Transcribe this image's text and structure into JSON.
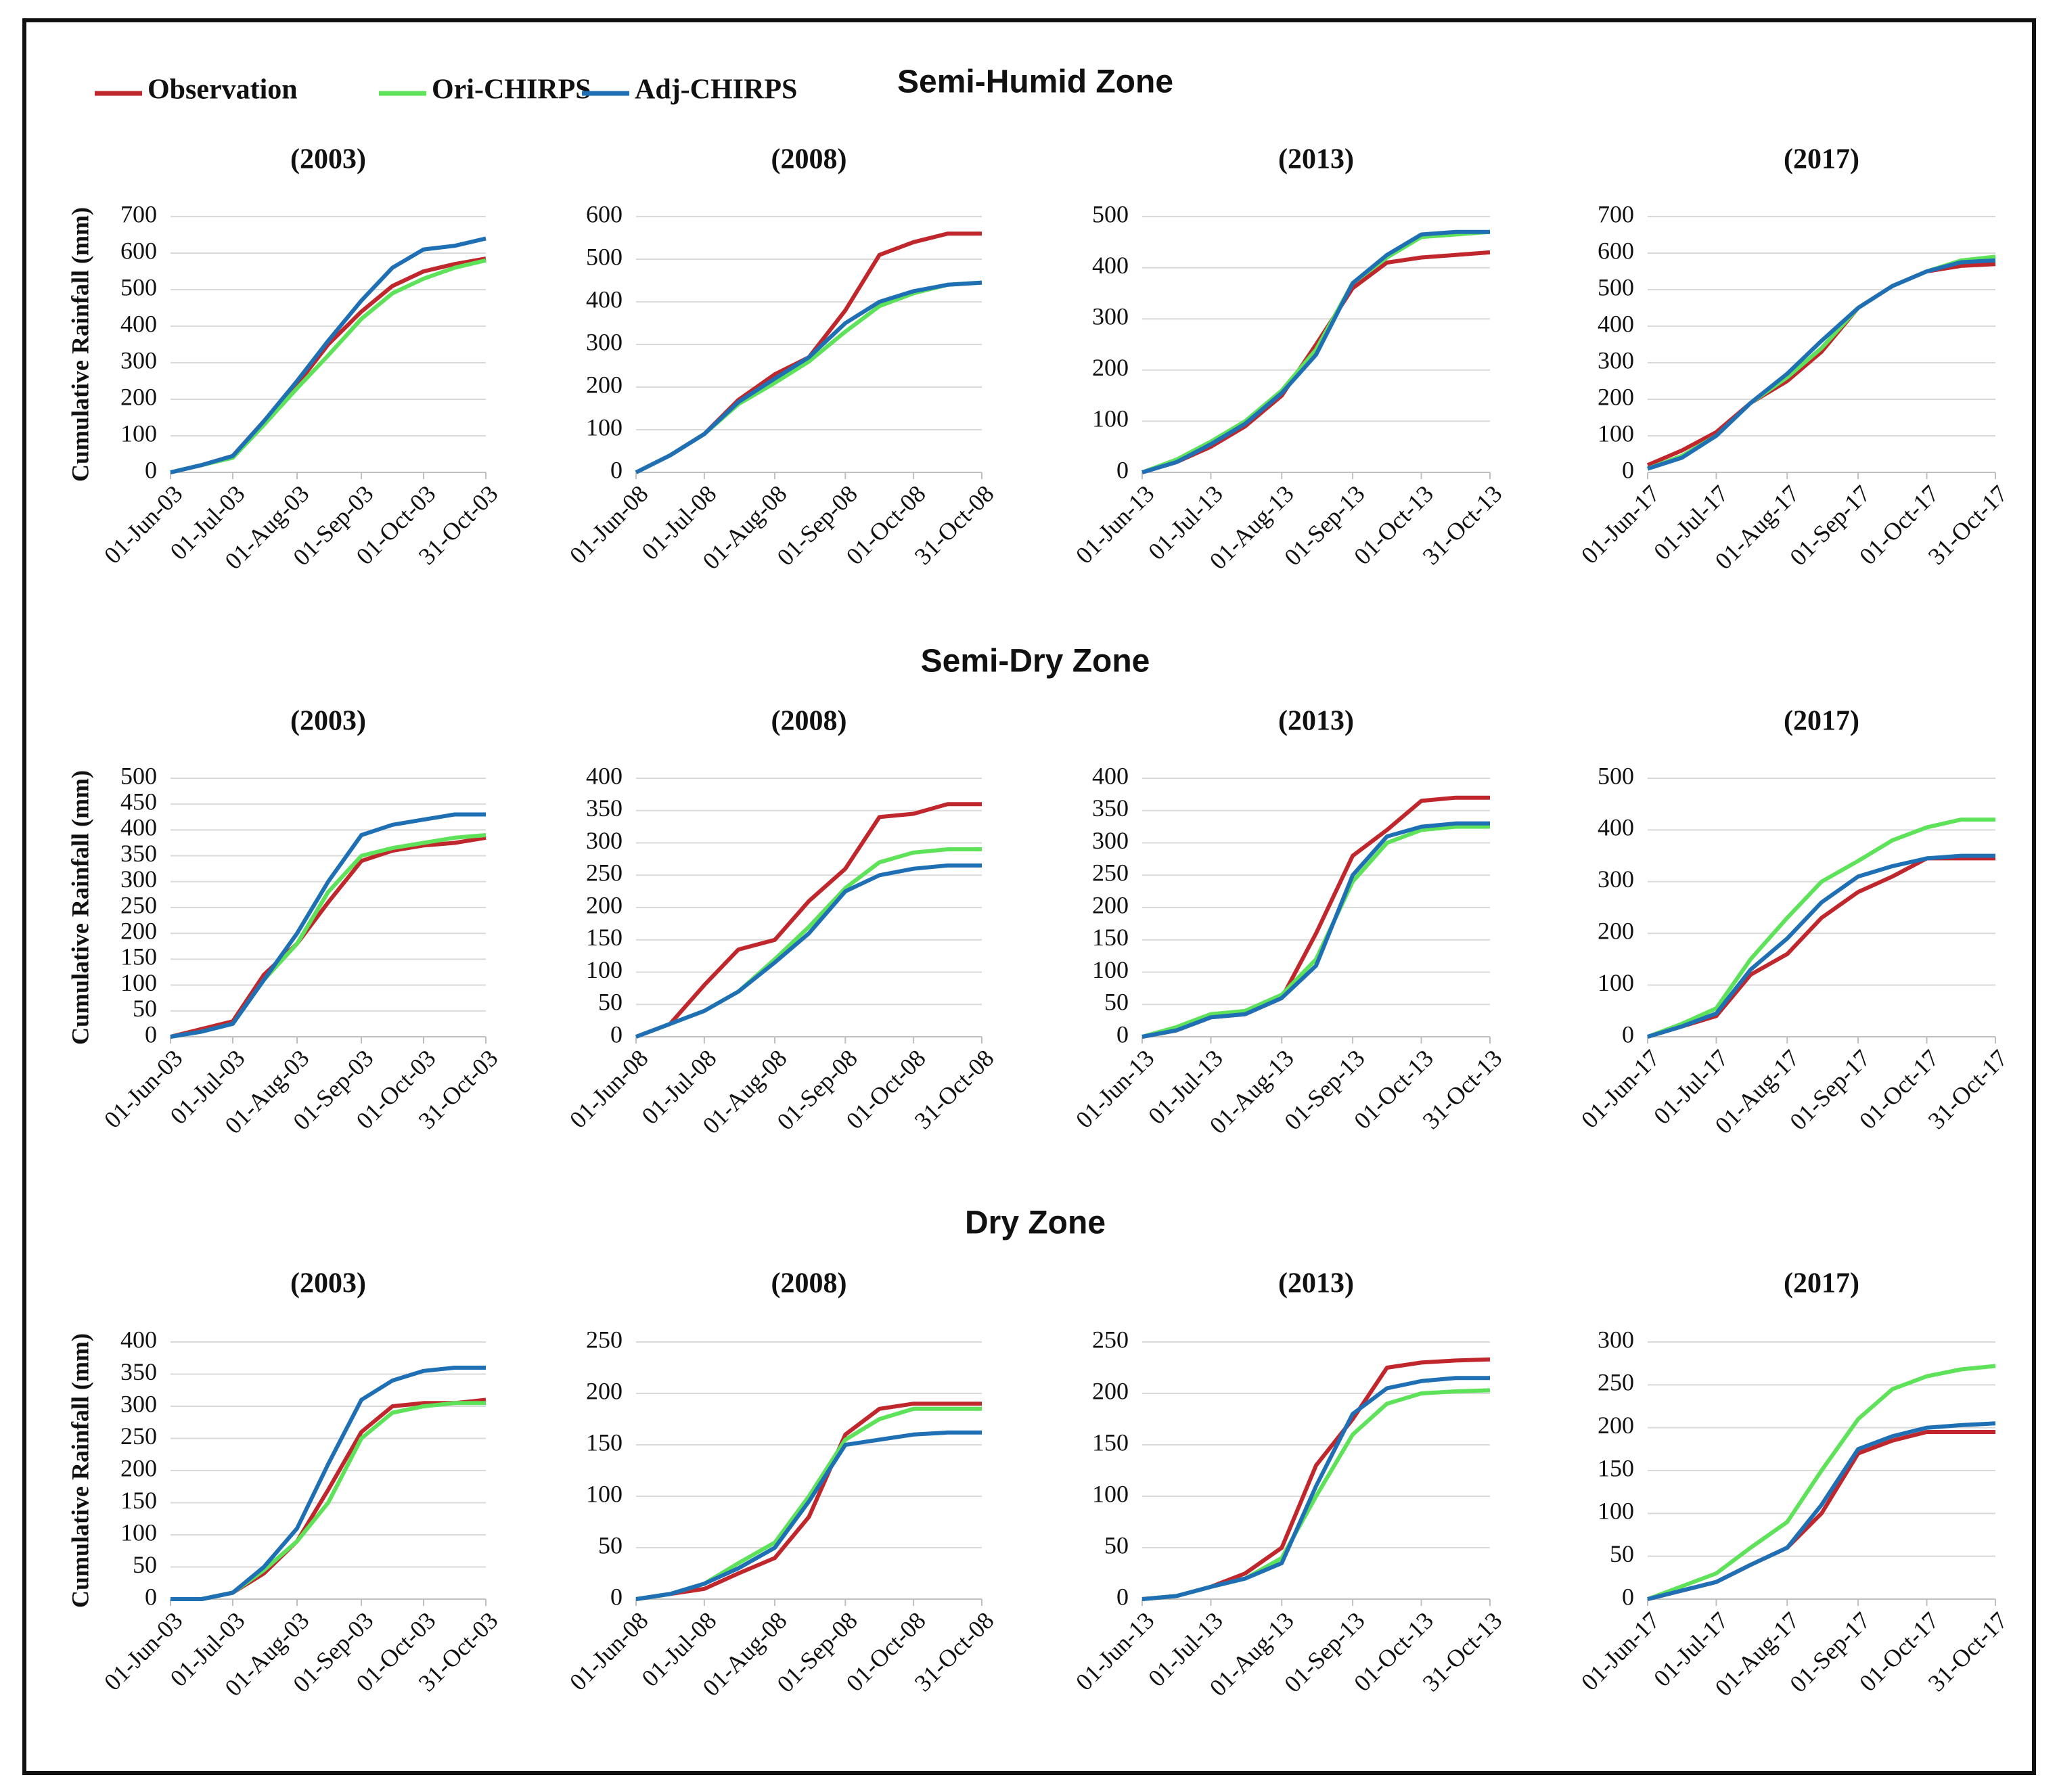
{
  "zones": [
    "Semi-Humid Zone",
    "Semi-Dry Zone",
    "Dry Zone"
  ],
  "legend": [
    {
      "name": "Observation",
      "color": "#c0272d"
    },
    {
      "name": "Ori-CHIRPS",
      "color": "#5ee25a"
    },
    {
      "name": "Adj-CHIRPS",
      "color": "#1f6fb4"
    }
  ],
  "chart_data": [
    {
      "type": "line",
      "title": "(2003)",
      "ylabel": "Cumulative Rainfall (mm)",
      "x": [
        "01-Jun-03",
        "16-Jun-03",
        "01-Jul-03",
        "16-Jul-03",
        "01-Aug-03",
        "16-Aug-03",
        "01-Sep-03",
        "16-Sep-03",
        "01-Oct-03",
        "16-Oct-03",
        "31-Oct-03"
      ],
      "xticks": [
        "01-Jun-03",
        "01-Jul-03",
        "01-Aug-03",
        "01-Sep-03",
        "01-Oct-03",
        "31-Oct-03"
      ],
      "ylim": [
        0,
        700
      ],
      "yticks": [
        0,
        100,
        200,
        300,
        400,
        500,
        600,
        700
      ],
      "grid": true,
      "series": [
        {
          "color": "#c0272d",
          "values": [
            0,
            20,
            45,
            140,
            240,
            350,
            440,
            510,
            550,
            570,
            585
          ]
        },
        {
          "color": "#5ee25a",
          "values": [
            0,
            20,
            40,
            130,
            230,
            320,
            420,
            490,
            530,
            560,
            580
          ]
        },
        {
          "color": "#1f6fb4",
          "values": [
            0,
            20,
            45,
            140,
            250,
            360,
            470,
            560,
            610,
            620,
            640
          ]
        }
      ]
    },
    {
      "type": "line",
      "title": "(2008)",
      "x": [
        "01-Jun-08",
        "16-Jun-08",
        "01-Jul-08",
        "16-Jul-08",
        "01-Aug-08",
        "16-Aug-08",
        "01-Sep-08",
        "16-Sep-08",
        "01-Oct-08",
        "16-Oct-08",
        "31-Oct-08"
      ],
      "xticks": [
        "01-Jun-08",
        "01-Jul-08",
        "01-Aug-08",
        "01-Sep-08",
        "01-Oct-08",
        "31-Oct-08"
      ],
      "ylim": [
        0,
        600
      ],
      "yticks": [
        0,
        100,
        200,
        300,
        400,
        500,
        600
      ],
      "grid": true,
      "series": [
        {
          "color": "#c0272d",
          "values": [
            0,
            40,
            90,
            170,
            230,
            270,
            380,
            510,
            540,
            560,
            560
          ]
        },
        {
          "color": "#5ee25a",
          "values": [
            0,
            40,
            90,
            160,
            210,
            260,
            330,
            390,
            420,
            440,
            445
          ]
        },
        {
          "color": "#1f6fb4",
          "values": [
            0,
            40,
            90,
            165,
            220,
            270,
            350,
            400,
            425,
            440,
            445
          ]
        }
      ]
    },
    {
      "type": "line",
      "title": "(2013)",
      "x": [
        "01-Jun-13",
        "16-Jun-13",
        "01-Jul-13",
        "16-Jul-13",
        "01-Aug-13",
        "16-Aug-13",
        "01-Sep-13",
        "16-Sep-13",
        "01-Oct-13",
        "16-Oct-13",
        "31-Oct-13"
      ],
      "xticks": [
        "01-Jun-13",
        "01-Jul-13",
        "01-Aug-13",
        "01-Sep-13",
        "01-Oct-13",
        "31-Oct-13"
      ],
      "ylim": [
        0,
        500
      ],
      "yticks": [
        0,
        100,
        200,
        300,
        400,
        500
      ],
      "grid": true,
      "series": [
        {
          "color": "#c0272d",
          "values": [
            0,
            20,
            50,
            90,
            150,
            250,
            360,
            410,
            420,
            425,
            430
          ]
        },
        {
          "color": "#5ee25a",
          "values": [
            0,
            25,
            60,
            100,
            160,
            240,
            370,
            420,
            460,
            465,
            470
          ]
        },
        {
          "color": "#1f6fb4",
          "values": [
            0,
            20,
            55,
            95,
            155,
            230,
            370,
            425,
            465,
            470,
            470
          ]
        }
      ]
    },
    {
      "type": "line",
      "title": "(2017)",
      "x": [
        "01-Jun-17",
        "16-Jun-17",
        "01-Jul-17",
        "16-Jul-17",
        "01-Aug-17",
        "16-Aug-17",
        "01-Sep-17",
        "16-Sep-17",
        "01-Oct-17",
        "16-Oct-17",
        "31-Oct-17"
      ],
      "xticks": [
        "01-Jun-17",
        "01-Jul-17",
        "01-Aug-17",
        "01-Sep-17",
        "01-Oct-17",
        "31-Oct-17"
      ],
      "ylim": [
        0,
        700
      ],
      "yticks": [
        0,
        100,
        200,
        300,
        400,
        500,
        600,
        700
      ],
      "grid": true,
      "series": [
        {
          "color": "#c0272d",
          "values": [
            20,
            60,
            110,
            190,
            250,
            330,
            450,
            510,
            550,
            565,
            570
          ]
        },
        {
          "color": "#5ee25a",
          "values": [
            10,
            45,
            100,
            190,
            260,
            340,
            450,
            510,
            550,
            580,
            590
          ]
        },
        {
          "color": "#1f6fb4",
          "values": [
            10,
            40,
            100,
            190,
            270,
            360,
            450,
            510,
            550,
            575,
            580
          ]
        }
      ]
    },
    {
      "type": "line",
      "title": "(2003)",
      "ylabel": "Cumulative Rainfall (mm)",
      "x": [
        "01-Jun-03",
        "16-Jun-03",
        "01-Jul-03",
        "16-Jul-03",
        "01-Aug-03",
        "16-Aug-03",
        "01-Sep-03",
        "16-Sep-03",
        "01-Oct-03",
        "16-Oct-03",
        "31-Oct-03"
      ],
      "xticks": [
        "01-Jun-03",
        "01-Jul-03",
        "01-Aug-03",
        "01-Sep-03",
        "01-Oct-03",
        "31-Oct-03"
      ],
      "ylim": [
        0,
        500
      ],
      "yticks": [
        0,
        50,
        100,
        150,
        200,
        250,
        300,
        350,
        400,
        450,
        500
      ],
      "grid": true,
      "series": [
        {
          "color": "#c0272d",
          "values": [
            0,
            15,
            30,
            120,
            180,
            260,
            340,
            360,
            370,
            375,
            385
          ]
        },
        {
          "color": "#5ee25a",
          "values": [
            0,
            10,
            25,
            110,
            180,
            280,
            350,
            365,
            375,
            385,
            390
          ]
        },
        {
          "color": "#1f6fb4",
          "values": [
            0,
            10,
            25,
            110,
            200,
            300,
            390,
            410,
            420,
            430,
            430
          ]
        }
      ]
    },
    {
      "type": "line",
      "title": "(2008)",
      "x": [
        "01-Jun-08",
        "16-Jun-08",
        "01-Jul-08",
        "16-Jul-08",
        "01-Aug-08",
        "16-Aug-08",
        "01-Sep-08",
        "16-Sep-08",
        "01-Oct-08",
        "16-Oct-08",
        "31-Oct-08"
      ],
      "xticks": [
        "01-Jun-08",
        "01-Jul-08",
        "01-Aug-08",
        "01-Sep-08",
        "01-Oct-08",
        "31-Oct-08"
      ],
      "ylim": [
        0,
        400
      ],
      "yticks": [
        0,
        50,
        100,
        150,
        200,
        250,
        300,
        350,
        400
      ],
      "grid": true,
      "series": [
        {
          "color": "#c0272d",
          "values": [
            0,
            20,
            80,
            135,
            150,
            210,
            260,
            340,
            345,
            360,
            360
          ]
        },
        {
          "color": "#5ee25a",
          "values": [
            0,
            20,
            40,
            70,
            120,
            170,
            230,
            270,
            285,
            290,
            290
          ]
        },
        {
          "color": "#1f6fb4",
          "values": [
            0,
            20,
            40,
            70,
            115,
            160,
            225,
            250,
            260,
            265,
            265
          ]
        }
      ]
    },
    {
      "type": "line",
      "title": "(2013)",
      "x": [
        "01-Jun-13",
        "16-Jun-13",
        "01-Jul-13",
        "16-Jul-13",
        "01-Aug-13",
        "16-Aug-13",
        "01-Sep-13",
        "16-Sep-13",
        "01-Oct-13",
        "16-Oct-13",
        "31-Oct-13"
      ],
      "xticks": [
        "01-Jun-13",
        "01-Jul-13",
        "01-Aug-13",
        "01-Sep-13",
        "01-Oct-13",
        "31-Oct-13"
      ],
      "ylim": [
        0,
        400
      ],
      "yticks": [
        0,
        50,
        100,
        150,
        200,
        250,
        300,
        350,
        400
      ],
      "grid": true,
      "series": [
        {
          "color": "#c0272d",
          "values": [
            0,
            10,
            30,
            35,
            60,
            160,
            280,
            320,
            365,
            370,
            370
          ]
        },
        {
          "color": "#5ee25a",
          "values": [
            0,
            15,
            35,
            40,
            65,
            120,
            240,
            300,
            320,
            325,
            325
          ]
        },
        {
          "color": "#1f6fb4",
          "values": [
            0,
            10,
            30,
            35,
            60,
            110,
            250,
            310,
            325,
            330,
            330
          ]
        }
      ]
    },
    {
      "type": "line",
      "title": "(2017)",
      "x": [
        "01-Jun-17",
        "16-Jun-17",
        "01-Jul-17",
        "16-Jul-17",
        "01-Aug-17",
        "16-Aug-17",
        "01-Sep-17",
        "16-Sep-17",
        "01-Oct-17",
        "16-Oct-17",
        "31-Oct-17"
      ],
      "xticks": [
        "01-Jun-17",
        "01-Jul-17",
        "01-Aug-17",
        "01-Sep-17",
        "01-Oct-17",
        "31-Oct-17"
      ],
      "ylim": [
        0,
        500
      ],
      "yticks": [
        0,
        100,
        200,
        300,
        400,
        500
      ],
      "grid": true,
      "series": [
        {
          "color": "#c0272d",
          "values": [
            0,
            20,
            40,
            120,
            160,
            230,
            280,
            310,
            345,
            345,
            345
          ]
        },
        {
          "color": "#5ee25a",
          "values": [
            0,
            25,
            55,
            150,
            230,
            300,
            340,
            380,
            405,
            420,
            420
          ]
        },
        {
          "color": "#1f6fb4",
          "values": [
            0,
            20,
            45,
            130,
            190,
            260,
            310,
            330,
            345,
            350,
            350
          ]
        }
      ]
    },
    {
      "type": "line",
      "title": "(2003)",
      "ylabel": "Cumulative Rainfall (mm)",
      "x": [
        "01-Jun-03",
        "16-Jun-03",
        "01-Jul-03",
        "16-Jul-03",
        "01-Aug-03",
        "16-Aug-03",
        "01-Sep-03",
        "16-Sep-03",
        "01-Oct-03",
        "16-Oct-03",
        "31-Oct-03"
      ],
      "xticks": [
        "01-Jun-03",
        "01-Jul-03",
        "01-Aug-03",
        "01-Sep-03",
        "01-Oct-03",
        "31-Oct-03"
      ],
      "ylim": [
        0,
        400
      ],
      "yticks": [
        0,
        50,
        100,
        150,
        200,
        250,
        300,
        350,
        400
      ],
      "grid": true,
      "series": [
        {
          "color": "#c0272d",
          "values": [
            0,
            0,
            10,
            40,
            90,
            170,
            260,
            300,
            305,
            305,
            310
          ]
        },
        {
          "color": "#5ee25a",
          "values": [
            0,
            0,
            10,
            45,
            90,
            150,
            250,
            290,
            300,
            305,
            305
          ]
        },
        {
          "color": "#1f6fb4",
          "values": [
            0,
            0,
            10,
            50,
            110,
            210,
            310,
            340,
            355,
            360,
            360
          ]
        }
      ]
    },
    {
      "type": "line",
      "title": "(2008)",
      "x": [
        "01-Jun-08",
        "16-Jun-08",
        "01-Jul-08",
        "16-Jul-08",
        "01-Aug-08",
        "16-Aug-08",
        "01-Sep-08",
        "16-Sep-08",
        "01-Oct-08",
        "16-Oct-08",
        "31-Oct-08"
      ],
      "xticks": [
        "01-Jun-08",
        "01-Jul-08",
        "01-Aug-08",
        "01-Sep-08",
        "01-Oct-08",
        "31-Oct-08"
      ],
      "ylim": [
        0,
        250
      ],
      "yticks": [
        0,
        50,
        100,
        150,
        200,
        250
      ],
      "grid": true,
      "series": [
        {
          "color": "#c0272d",
          "values": [
            0,
            5,
            10,
            25,
            40,
            80,
            160,
            185,
            190,
            190,
            190
          ]
        },
        {
          "color": "#5ee25a",
          "values": [
            0,
            5,
            15,
            35,
            55,
            100,
            155,
            175,
            185,
            185,
            185
          ]
        },
        {
          "color": "#1f6fb4",
          "values": [
            0,
            5,
            15,
            30,
            50,
            95,
            150,
            155,
            160,
            162,
            162
          ]
        }
      ]
    },
    {
      "type": "line",
      "title": "(2013)",
      "x": [
        "01-Jun-13",
        "16-Jun-13",
        "01-Jul-13",
        "16-Jul-13",
        "01-Aug-13",
        "16-Aug-13",
        "01-Sep-13",
        "16-Sep-13",
        "01-Oct-13",
        "16-Oct-13",
        "31-Oct-13"
      ],
      "xticks": [
        "01-Jun-13",
        "01-Jul-13",
        "01-Aug-13",
        "01-Sep-13",
        "01-Oct-13",
        "31-Oct-13"
      ],
      "ylim": [
        0,
        250
      ],
      "yticks": [
        0,
        50,
        100,
        150,
        200,
        250
      ],
      "grid": true,
      "series": [
        {
          "color": "#c0272d",
          "values": [
            0,
            3,
            12,
            25,
            50,
            130,
            175,
            225,
            230,
            232,
            233
          ]
        },
        {
          "color": "#5ee25a",
          "values": [
            0,
            3,
            12,
            20,
            40,
            100,
            160,
            190,
            200,
            202,
            203
          ]
        },
        {
          "color": "#1f6fb4",
          "values": [
            0,
            3,
            12,
            20,
            35,
            110,
            180,
            205,
            212,
            215,
            215
          ]
        }
      ]
    },
    {
      "type": "line",
      "title": "(2017)",
      "x": [
        "01-Jun-17",
        "16-Jun-17",
        "01-Jul-17",
        "16-Jul-17",
        "01-Aug-17",
        "16-Aug-17",
        "01-Sep-17",
        "16-Sep-17",
        "01-Oct-17",
        "16-Oct-17",
        "31-Oct-17"
      ],
      "xticks": [
        "01-Jun-17",
        "01-Jul-17",
        "01-Aug-17",
        "01-Sep-17",
        "01-Oct-17",
        "31-Oct-17"
      ],
      "ylim": [
        0,
        300
      ],
      "yticks": [
        0,
        50,
        100,
        150,
        200,
        250,
        300
      ],
      "grid": true,
      "series": [
        {
          "color": "#c0272d",
          "values": [
            0,
            10,
            20,
            40,
            60,
            100,
            170,
            185,
            195,
            195,
            195
          ]
        },
        {
          "color": "#5ee25a",
          "values": [
            0,
            15,
            30,
            60,
            90,
            150,
            210,
            245,
            260,
            268,
            272
          ]
        },
        {
          "color": "#1f6fb4",
          "values": [
            0,
            10,
            20,
            40,
            60,
            110,
            175,
            190,
            200,
            203,
            205
          ]
        }
      ]
    }
  ]
}
